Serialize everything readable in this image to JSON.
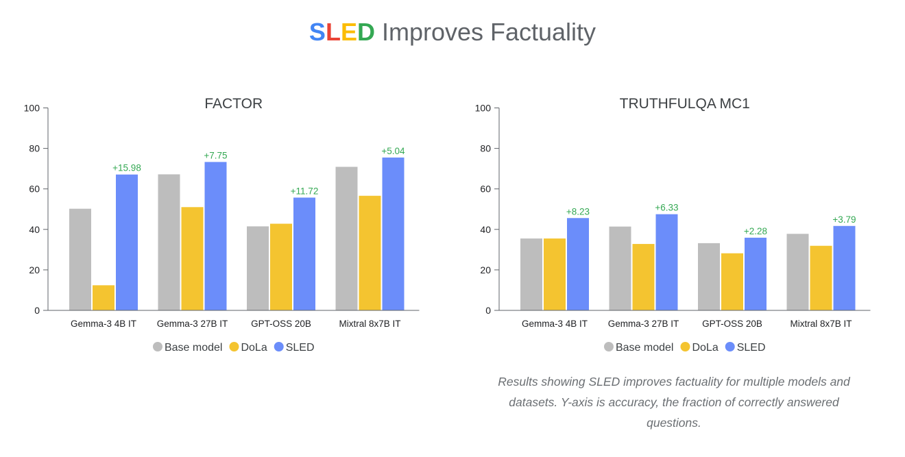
{
  "header": {
    "brand_letters": [
      {
        "char": "S",
        "color": "#4285F4"
      },
      {
        "char": "L",
        "color": "#EA4335"
      },
      {
        "char": "E",
        "color": "#FBBC04"
      },
      {
        "char": "D",
        "color": "#34A853"
      }
    ],
    "title_rest": " Improves Factuality"
  },
  "caption": "Results showing SLED improves factuality for multiple models and datasets. Y-axis is accuracy, the fraction of correctly answered questions.",
  "chart_data": [
    {
      "type": "bar",
      "title": "FACTOR",
      "categories": [
        "Gemma-3 4B IT",
        "Gemma-3 27B IT",
        "GPT-OSS 20B",
        "Mixtral 8x7B IT"
      ],
      "series": [
        {
          "name": "Base model",
          "color": "#BDBDBD",
          "values": [
            50.2,
            67.2,
            41.5,
            70.9
          ]
        },
        {
          "name": "DoLa",
          "color": "#F4C430",
          "values": [
            12.4,
            51.0,
            42.8,
            56.6
          ]
        },
        {
          "name": "SLED",
          "color": "#6B8DFA",
          "values": [
            67.1,
            73.3,
            55.7,
            75.5
          ]
        }
      ],
      "annotations": [
        "+15.98",
        "+7.75",
        "+11.72",
        "+5.04"
      ],
      "annotation_color": "#34A853",
      "ylim": [
        0,
        100
      ],
      "yticks": [
        0,
        20,
        40,
        60,
        80,
        100
      ],
      "legend_position": "bottom-center"
    },
    {
      "type": "bar",
      "title": "TRUTHFULQA MC1",
      "categories": [
        "Gemma-3 4B IT",
        "Gemma-3 27B IT",
        "GPT-OSS 20B",
        "Mixtral 8x7B IT"
      ],
      "series": [
        {
          "name": "Base model",
          "color": "#BDBDBD",
          "values": [
            35.5,
            41.4,
            33.2,
            37.8
          ]
        },
        {
          "name": "DoLa",
          "color": "#F4C430",
          "values": [
            35.5,
            32.8,
            28.2,
            31.9
          ]
        },
        {
          "name": "SLED",
          "color": "#6B8DFA",
          "values": [
            45.6,
            47.5,
            35.9,
            41.7
          ]
        }
      ],
      "annotations": [
        "+8.23",
        "+6.33",
        "+2.28",
        "+3.79"
      ],
      "annotation_color": "#34A853",
      "ylim": [
        0,
        100
      ],
      "yticks": [
        0,
        20,
        40,
        60,
        80,
        100
      ],
      "legend_position": "bottom-center"
    }
  ]
}
